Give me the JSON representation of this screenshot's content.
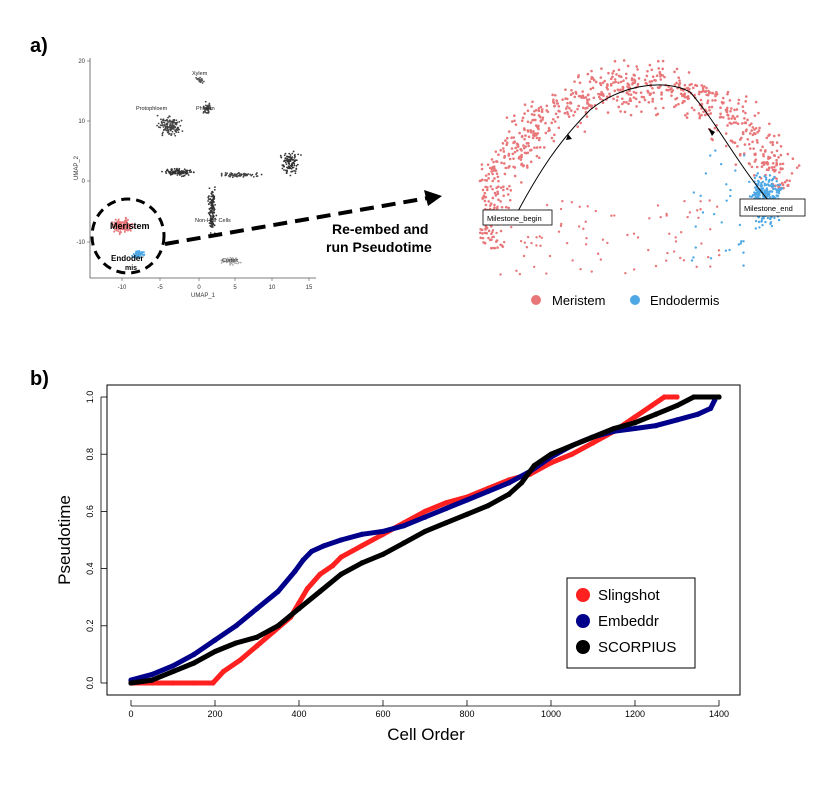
{
  "panel_a": {
    "label": "a)",
    "umap": {
      "xlabel": "UMAP_1",
      "ylabel": "UMAP_2",
      "x_ticks": [
        "-10",
        "-5",
        "0",
        "5",
        "10",
        "15"
      ],
      "y_ticks": [
        "20",
        "10",
        "0",
        "-10"
      ],
      "cluster_labels": [
        "Xylem",
        "Protophloem",
        "Phloem",
        "Non-Hair Cells",
        "Cortex",
        "Meristem",
        "Endoder",
        "mis"
      ]
    },
    "arrow_text": [
      "Re-embed and",
      "run Pseudotime"
    ],
    "milestones": {
      "begin": "Milestone_begin",
      "end": "Milestone_end"
    },
    "legend": [
      {
        "name": "Meristem",
        "color": "#e8777a"
      },
      {
        "name": "Endodermis",
        "color": "#4ea8e6"
      }
    ]
  },
  "panel_b": {
    "label": "b)"
  },
  "chart_data": {
    "type": "line",
    "title": "",
    "xlabel": "Cell Order",
    "ylabel": "Pseudotime",
    "xlim": [
      0,
      1400
    ],
    "ylim": [
      0,
      1
    ],
    "x_ticks": [
      0,
      200,
      400,
      600,
      800,
      1000,
      1200,
      1400
    ],
    "y_ticks": [
      0.0,
      0.2,
      0.4,
      0.6,
      0.8,
      1.0
    ],
    "y_tick_labels": [
      "0.0",
      "0.2",
      "0.4",
      "0.6",
      "0.8",
      "1.0"
    ],
    "grid": false,
    "legend_position": "bottom-right",
    "series": [
      {
        "name": "Slingshot",
        "color": "#ff2020",
        "points": [
          [
            0,
            0
          ],
          [
            50,
            0
          ],
          [
            100,
            0
          ],
          [
            150,
            0
          ],
          [
            195,
            0
          ],
          [
            220,
            0.04
          ],
          [
            260,
            0.08
          ],
          [
            300,
            0.13
          ],
          [
            340,
            0.18
          ],
          [
            380,
            0.23
          ],
          [
            400,
            0.28
          ],
          [
            420,
            0.33
          ],
          [
            450,
            0.38
          ],
          [
            480,
            0.41
          ],
          [
            500,
            0.44
          ],
          [
            550,
            0.48
          ],
          [
            600,
            0.52
          ],
          [
            650,
            0.56
          ],
          [
            700,
            0.6
          ],
          [
            750,
            0.63
          ],
          [
            800,
            0.65
          ],
          [
            850,
            0.68
          ],
          [
            900,
            0.71
          ],
          [
            950,
            0.73
          ],
          [
            1000,
            0.77
          ],
          [
            1050,
            0.8
          ],
          [
            1100,
            0.84
          ],
          [
            1150,
            0.88
          ],
          [
            1200,
            0.93
          ],
          [
            1240,
            0.97
          ],
          [
            1270,
            1.0
          ],
          [
            1300,
            1.0
          ]
        ]
      },
      {
        "name": "Embeddr",
        "color": "#00008b",
        "points": [
          [
            0,
            0.01
          ],
          [
            50,
            0.03
          ],
          [
            100,
            0.06
          ],
          [
            150,
            0.1
          ],
          [
            200,
            0.15
          ],
          [
            250,
            0.2
          ],
          [
            300,
            0.26
          ],
          [
            350,
            0.32
          ],
          [
            390,
            0.39
          ],
          [
            410,
            0.43
          ],
          [
            430,
            0.46
          ],
          [
            460,
            0.48
          ],
          [
            500,
            0.5
          ],
          [
            550,
            0.52
          ],
          [
            600,
            0.53
          ],
          [
            650,
            0.55
          ],
          [
            700,
            0.58
          ],
          [
            750,
            0.61
          ],
          [
            800,
            0.64
          ],
          [
            850,
            0.67
          ],
          [
            900,
            0.7
          ],
          [
            950,
            0.74
          ],
          [
            1000,
            0.79
          ],
          [
            1050,
            0.83
          ],
          [
            1100,
            0.86
          ],
          [
            1150,
            0.88
          ],
          [
            1200,
            0.89
          ],
          [
            1250,
            0.9
          ],
          [
            1300,
            0.92
          ],
          [
            1350,
            0.94
          ],
          [
            1380,
            0.96
          ],
          [
            1390,
            0.99
          ]
        ]
      },
      {
        "name": "SCORPIUS",
        "color": "#000000",
        "points": [
          [
            0,
            0
          ],
          [
            50,
            0.01
          ],
          [
            100,
            0.04
          ],
          [
            150,
            0.07
          ],
          [
            200,
            0.11
          ],
          [
            250,
            0.14
          ],
          [
            300,
            0.16
          ],
          [
            350,
            0.2
          ],
          [
            400,
            0.26
          ],
          [
            450,
            0.32
          ],
          [
            500,
            0.38
          ],
          [
            550,
            0.42
          ],
          [
            600,
            0.45
          ],
          [
            650,
            0.49
          ],
          [
            700,
            0.53
          ],
          [
            750,
            0.56
          ],
          [
            800,
            0.59
          ],
          [
            850,
            0.62
          ],
          [
            900,
            0.66
          ],
          [
            930,
            0.7
          ],
          [
            960,
            0.76
          ],
          [
            1000,
            0.8
          ],
          [
            1050,
            0.83
          ],
          [
            1100,
            0.86
          ],
          [
            1150,
            0.89
          ],
          [
            1200,
            0.91
          ],
          [
            1250,
            0.94
          ],
          [
            1300,
            0.97
          ],
          [
            1340,
            1.0
          ],
          [
            1400,
            1.0
          ]
        ]
      }
    ]
  }
}
